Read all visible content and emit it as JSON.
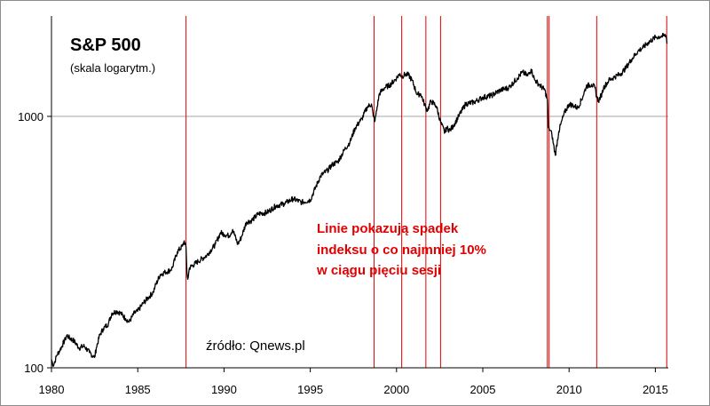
{
  "chart_data": {
    "type": "line",
    "title": "S&P 500",
    "subtitle": "(skala logarytm.)",
    "xlabel": "",
    "ylabel": "",
    "y_scale": "log",
    "xlim": [
      1980,
      2015.75
    ],
    "ylim": [
      100,
      2300
    ],
    "x_ticks": [
      1980,
      1985,
      1990,
      1995,
      2000,
      2005,
      2010,
      2015
    ],
    "y_ticks": [
      100,
      1000
    ],
    "grid": "horizontal at 1000",
    "annotation": "Linie pokazują spadek indeksu o co najmniej 10% w ciągu pięciu sesji",
    "annotation_lines": [
      "Linie pokazują spadek",
      "indeksu o co najmniej 10%",
      "w ciągu pięciu sesji"
    ],
    "source": "źródło: Qnews.pl",
    "colors": {
      "line": "#000000",
      "markers": "#e00000",
      "grid": "#a6a6a6"
    },
    "series": [
      {
        "x": [
          1980.0,
          1980.1,
          1980.2,
          1980.3,
          1980.5,
          1980.8,
          1980.9,
          1981.0,
          1981.3,
          1981.6,
          1981.9,
          1982.2,
          1982.5,
          1982.6,
          1982.8,
          1983.0,
          1983.3,
          1983.5,
          1983.8,
          1984.0,
          1984.3,
          1984.5,
          1984.8,
          1985.0,
          1985.3,
          1985.6,
          1985.9,
          1986.0,
          1986.3,
          1986.6,
          1986.9,
          1987.0,
          1987.3,
          1987.6,
          1987.7,
          1987.8,
          1987.85,
          1987.9,
          1988.0,
          1988.5,
          1989.0,
          1989.5,
          1989.8,
          1990.0,
          1990.3,
          1990.5,
          1990.8,
          1991.0,
          1991.3,
          1991.6,
          1992.0,
          1992.5,
          1993.0,
          1993.5,
          1994.0,
          1994.5,
          1995.0,
          1995.3,
          1995.6,
          1996.0,
          1996.3,
          1996.6,
          1997.0,
          1997.3,
          1997.6,
          1997.9,
          1998.0,
          1998.3,
          1998.55,
          1998.65,
          1998.75,
          1999.0,
          1999.3,
          1999.6,
          2000.0,
          2000.2,
          2000.3,
          2000.5,
          2000.7,
          2000.9,
          2001.2,
          2001.4,
          2001.7,
          2001.8,
          2002.0,
          2002.3,
          2002.55,
          2002.8,
          2002.9,
          2003.1,
          2003.3,
          2003.6,
          2004.0,
          2004.5,
          2005.0,
          2005.5,
          2006.0,
          2006.5,
          2007.0,
          2007.3,
          2007.6,
          2007.8,
          2008.0,
          2008.3,
          2008.6,
          2008.75,
          2008.8,
          2008.9,
          2009.0,
          2009.2,
          2009.4,
          2009.7,
          2010.0,
          2010.3,
          2010.5,
          2010.8,
          2011.0,
          2011.3,
          2011.5,
          2011.6,
          2011.7,
          2011.9,
          2012.0,
          2012.3,
          2012.6,
          2013.0,
          2013.3,
          2013.6,
          2014.0,
          2014.3,
          2014.6,
          2015.0,
          2015.3,
          2015.5,
          2015.6,
          2015.7
        ],
        "values": [
          108,
          102,
          106,
          112,
          118,
          130,
          135,
          132,
          128,
          120,
          122,
          115,
          110,
          120,
          135,
          143,
          150,
          165,
          168,
          165,
          157,
          152,
          165,
          168,
          180,
          190,
          200,
          210,
          235,
          240,
          245,
          250,
          290,
          305,
          320,
          300,
          240,
          225,
          250,
          265,
          280,
          310,
          345,
          340,
          335,
          355,
          310,
          330,
          380,
          385,
          410,
          415,
          440,
          450,
          470,
          455,
          465,
          520,
          580,
          610,
          645,
          660,
          740,
          790,
          900,
          960,
          980,
          1090,
          1120,
          1000,
          960,
          1230,
          1300,
          1330,
          1420,
          1480,
          1440,
          1470,
          1460,
          1390,
          1220,
          1230,
          1080,
          1060,
          1150,
          1100,
          950,
          860,
          900,
          880,
          920,
          1000,
          1120,
          1140,
          1190,
          1210,
          1270,
          1300,
          1420,
          1500,
          1450,
          1540,
          1400,
          1330,
          1270,
          1150,
          900,
          880,
          850,
          700,
          870,
          1020,
          1120,
          1100,
          1080,
          1200,
          1320,
          1340,
          1300,
          1200,
          1150,
          1230,
          1300,
          1390,
          1430,
          1480,
          1560,
          1680,
          1820,
          1880,
          1970,
          2060,
          2080,
          2090,
          2100,
          1960
        ]
      }
    ],
    "marker_dates": [
      1987.8,
      1998.7,
      2000.3,
      2001.7,
      2002.55,
      2008.74,
      2008.84,
      2011.6,
      2015.66
    ]
  }
}
